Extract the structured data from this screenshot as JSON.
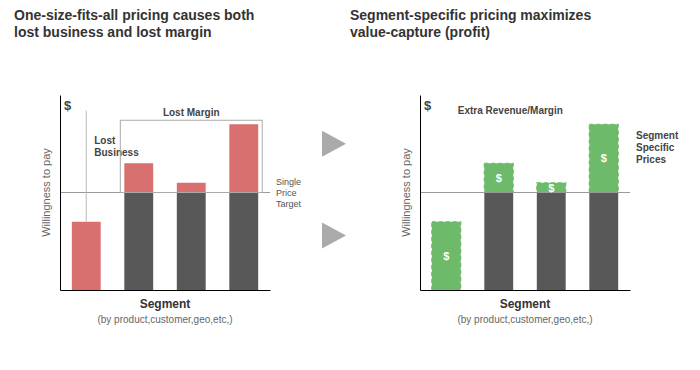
{
  "chart_data": [
    {
      "type": "bar",
      "title": "One-size-fits-all pricing causes both\nlost business and lost margin",
      "xlabel": "Segment",
      "ylabel": "Willingness to pay",
      "categories": [
        null,
        null,
        null,
        null
      ],
      "values": [
        3.5,
        6.5,
        5.5,
        8.5
      ],
      "single_price": 5.0,
      "color": "#d97070",
      "ylim": [
        0,
        10
      ],
      "tick_labels": false,
      "grid": false,
      "annotations": [
        {
          "text": "(by product,customer,geo,etc,)"
        },
        {
          "text": "$"
        },
        {
          "text": "Single\nPrice\nTarget"
        },
        {
          "text": "Lost\nBusiness"
        },
        {
          "text": "Lost Margin"
        }
      ]
    },
    {
      "type": "bar",
      "title": "Segment-specific pricing maximizes\nvalue-capture (profit)",
      "xlabel": "Segment",
      "ylabel": "Willingness to pay",
      "categories": [
        null,
        null,
        null,
        null
      ],
      "values": [
        3.5,
        6.5,
        5.5,
        8.5
      ],
      "single_price": 5.0,
      "color": "#6dba6a",
      "ylim": [
        0,
        10
      ],
      "tick_labels": false,
      "grid": false,
      "annotations": [
        {
          "text": "(by product,customer,geo,etc,)"
        },
        {
          "text": "$"
        },
        {
          "text": "Extra Revenue/Margin"
        },
        {
          "text": "Segment\nSpecific\nPrices"
        },
        {
          "text": "$"
        },
        {
          "text": "$"
        },
        {
          "text": "$"
        },
        {
          "text": "$"
        }
      ]
    }
  ]
}
